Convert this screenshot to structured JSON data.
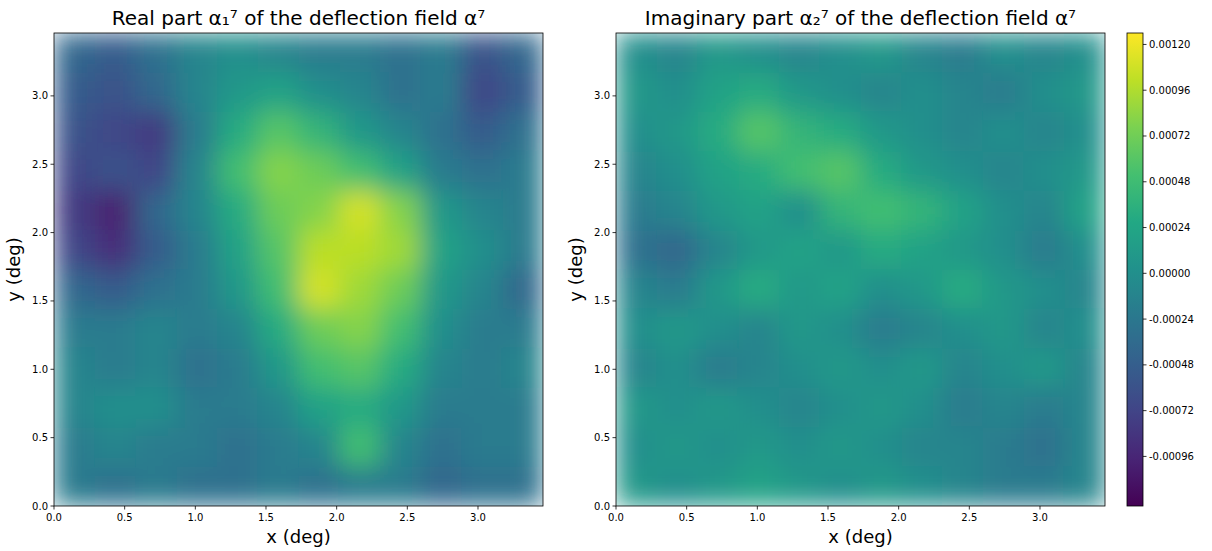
{
  "chart_data": [
    {
      "type": "heatmap",
      "title": "Real part α₁⁷ of the deflection field α⁷",
      "x_label": "x (deg)",
      "y_label": "y (deg)",
      "xlim": [
        0,
        3.46
      ],
      "ylim": [
        0,
        3.46
      ],
      "xticks": [
        {
          "value": 0,
          "label": "0.0"
        },
        {
          "value": 0.5,
          "label": "0.5"
        },
        {
          "value": 1,
          "label": "1.0"
        },
        {
          "value": 1.5,
          "label": "1.5"
        },
        {
          "value": 2,
          "label": "2.0"
        },
        {
          "value": 2.5,
          "label": "2.5"
        },
        {
          "value": 3,
          "label": "3.0"
        }
      ],
      "yticks": [
        {
          "value": 0,
          "label": "0.0"
        },
        {
          "value": 0.5,
          "label": "0.5"
        },
        {
          "value": 1,
          "label": "1.0"
        },
        {
          "value": 1.5,
          "label": "1.5"
        },
        {
          "value": 2,
          "label": "2.0"
        },
        {
          "value": 2.5,
          "label": "2.5"
        },
        {
          "value": 3,
          "label": "3.0"
        }
      ],
      "cells": [
        [
          -0.0004,
          -0.0005,
          -0.0003,
          -0.0001,
          0,
          -0.0001,
          -0.0002,
          -0.0002,
          -0.0003,
          -0.0002,
          -0.0006,
          -0.0004
        ],
        [
          -0.0005,
          -0.0006,
          -0.0004,
          -0.0001,
          0.0001,
          0.0002,
          0,
          -0.0001,
          -0.0003,
          -0.0002,
          -0.0007,
          -0.0005
        ],
        [
          -0.0006,
          -0.0007,
          -0.0008,
          -0.0002,
          0.0003,
          0.0006,
          0.0004,
          0.0001,
          -0.0001,
          -0.0003,
          -0.0005,
          -0.0003
        ],
        [
          -0.0007,
          -0.0006,
          -0.0007,
          -0.0001,
          0.0005,
          0.0008,
          0.0007,
          0.0005,
          0.0002,
          -0.0002,
          -0.0003,
          -0.0002
        ],
        [
          -0.0008,
          -0.001,
          -0.0004,
          -0.0001,
          0.0003,
          0.0007,
          0.0008,
          0.0011,
          0.0008,
          0.0001,
          -0.0001,
          -0.0002
        ],
        [
          -0.0007,
          -0.0009,
          -0.0005,
          -0.0002,
          0.0002,
          0.0006,
          0.001,
          0.001,
          0.0009,
          0.0002,
          0,
          -0.0002
        ],
        [
          -0.0004,
          -0.0005,
          -0.0003,
          -0.0002,
          0.0001,
          0.0005,
          0.0011,
          0.0009,
          0.0007,
          0.0001,
          -0.0001,
          -0.0004
        ],
        [
          -0.0002,
          -0.0002,
          -0.0001,
          -0.0002,
          -0.0001,
          0.0003,
          0.0007,
          0.0008,
          0.0005,
          0,
          -0.0002,
          -0.0002
        ],
        [
          -0.0001,
          -0.0002,
          -0.0001,
          -0.0003,
          -0.0002,
          0.0001,
          0.0005,
          0.0006,
          0.0003,
          -0.0001,
          -0.0002,
          -0.0001
        ],
        [
          -0.0001,
          0,
          0,
          -0.0002,
          -0.0002,
          -0.0001,
          0.0002,
          0.0003,
          0.0001,
          -0.0002,
          -0.0002,
          -0.0002
        ],
        [
          -0.0002,
          -0.0001,
          -0.0002,
          -0.0002,
          -0.0003,
          -0.0002,
          -0.0001,
          0.0005,
          -0.0001,
          -0.0003,
          -0.0002,
          -0.0002
        ],
        [
          -0.0002,
          -0.0003,
          -0.0002,
          -0.0003,
          -0.0003,
          -0.0002,
          -0.0003,
          -0.0002,
          -0.0002,
          -0.0004,
          -0.0003,
          -0.0003
        ]
      ]
    },
    {
      "type": "heatmap",
      "title": "Imaginary part α₂⁷ of the deflection field α⁷",
      "x_label": "x (deg)",
      "y_label": "y (deg)",
      "xlim": [
        0,
        3.46
      ],
      "ylim": [
        0,
        3.46
      ],
      "xticks": [
        {
          "value": 0,
          "label": "0.0"
        },
        {
          "value": 0.5,
          "label": "0.5"
        },
        {
          "value": 1,
          "label": "1.0"
        },
        {
          "value": 1.5,
          "label": "1.5"
        },
        {
          "value": 2,
          "label": "2.0"
        },
        {
          "value": 2.5,
          "label": "2.5"
        },
        {
          "value": 3,
          "label": "3.0"
        }
      ],
      "yticks": [
        {
          "value": 0,
          "label": "0.0"
        },
        {
          "value": 0.5,
          "label": "0.5"
        },
        {
          "value": 1,
          "label": "1.0"
        },
        {
          "value": 1.5,
          "label": "1.5"
        },
        {
          "value": 2,
          "label": "2.0"
        },
        {
          "value": 2.5,
          "label": "2.5"
        },
        {
          "value": 3,
          "label": "3.0"
        }
      ],
      "cells": [
        [
          0,
          -0.0001,
          0.0001,
          0,
          -0.0001,
          0,
          0.0001,
          -0.0001,
          -0.0002,
          0,
          -0.0001,
          0
        ],
        [
          0.0001,
          0,
          0.0002,
          0.0003,
          0.0001,
          0,
          -0.0001,
          0,
          -0.0001,
          -0.0002,
          0,
          0.0001
        ],
        [
          0,
          0.0001,
          0.0003,
          0.0006,
          0.0004,
          0.0003,
          0.0001,
          0,
          -0.0001,
          0,
          -0.0001,
          0
        ],
        [
          -0.0001,
          0,
          0.0002,
          0.0003,
          0.0005,
          0.0006,
          0.0003,
          0.0001,
          0,
          -0.0001,
          0,
          0.0001
        ],
        [
          -0.0002,
          -0.0001,
          0.0001,
          0.0002,
          0,
          0.0004,
          0.0005,
          0.0004,
          0.0002,
          0,
          -0.0001,
          0.0002
        ],
        [
          -0.0003,
          -0.0004,
          -0.0001,
          0.0001,
          0.0002,
          0.0001,
          0.0003,
          0.0002,
          0.0001,
          0,
          -0.0002,
          0
        ],
        [
          -0.0001,
          -0.0002,
          0.0001,
          0.0003,
          0.0001,
          0.0002,
          0,
          0.0001,
          0.0003,
          0.0001,
          0,
          -0.0001
        ],
        [
          0,
          0.0001,
          0,
          -0.0001,
          0.0001,
          0,
          -0.0002,
          -0.0001,
          0,
          0.0001,
          -0.0001,
          0
        ],
        [
          -0.0001,
          0,
          -0.0002,
          -0.0001,
          0,
          0.0001,
          0,
          0.0001,
          -0.0001,
          0,
          0.0001,
          -0.0001
        ],
        [
          0.0001,
          0,
          0.0001,
          0,
          -0.0001,
          0,
          0.0001,
          0,
          -0.0002,
          -0.0001,
          -0.0002,
          -0.0001
        ],
        [
          0,
          0.0001,
          0,
          0.0001,
          0,
          0.0001,
          0,
          -0.0001,
          -0.0001,
          -0.0002,
          -0.0003,
          -0.0001
        ],
        [
          0.0001,
          0,
          0.0001,
          0.0002,
          0.0001,
          0,
          0.0001,
          0,
          -0.0001,
          -0.0002,
          -0.0002,
          -0.0001
        ]
      ],
      "colorbar_range": [
        -0.00122,
        0.00126
      ],
      "colorbar_ticks": [
        {
          "value": 0.0012,
          "label": "0.00120"
        },
        {
          "value": 0.00096,
          "label": "0.00096"
        },
        {
          "value": 0.00072,
          "label": "0.00072"
        },
        {
          "value": 0.00048,
          "label": "0.00048"
        },
        {
          "value": 0.00024,
          "label": "0.00024"
        },
        {
          "value": 0,
          "label": "0.00000"
        },
        {
          "value": -0.00024,
          "label": "-0.00024"
        },
        {
          "value": -0.00048,
          "label": "-0.00048"
        },
        {
          "value": -0.00072,
          "label": "-0.00072"
        },
        {
          "value": -0.00096,
          "label": "-0.00096"
        }
      ]
    }
  ]
}
